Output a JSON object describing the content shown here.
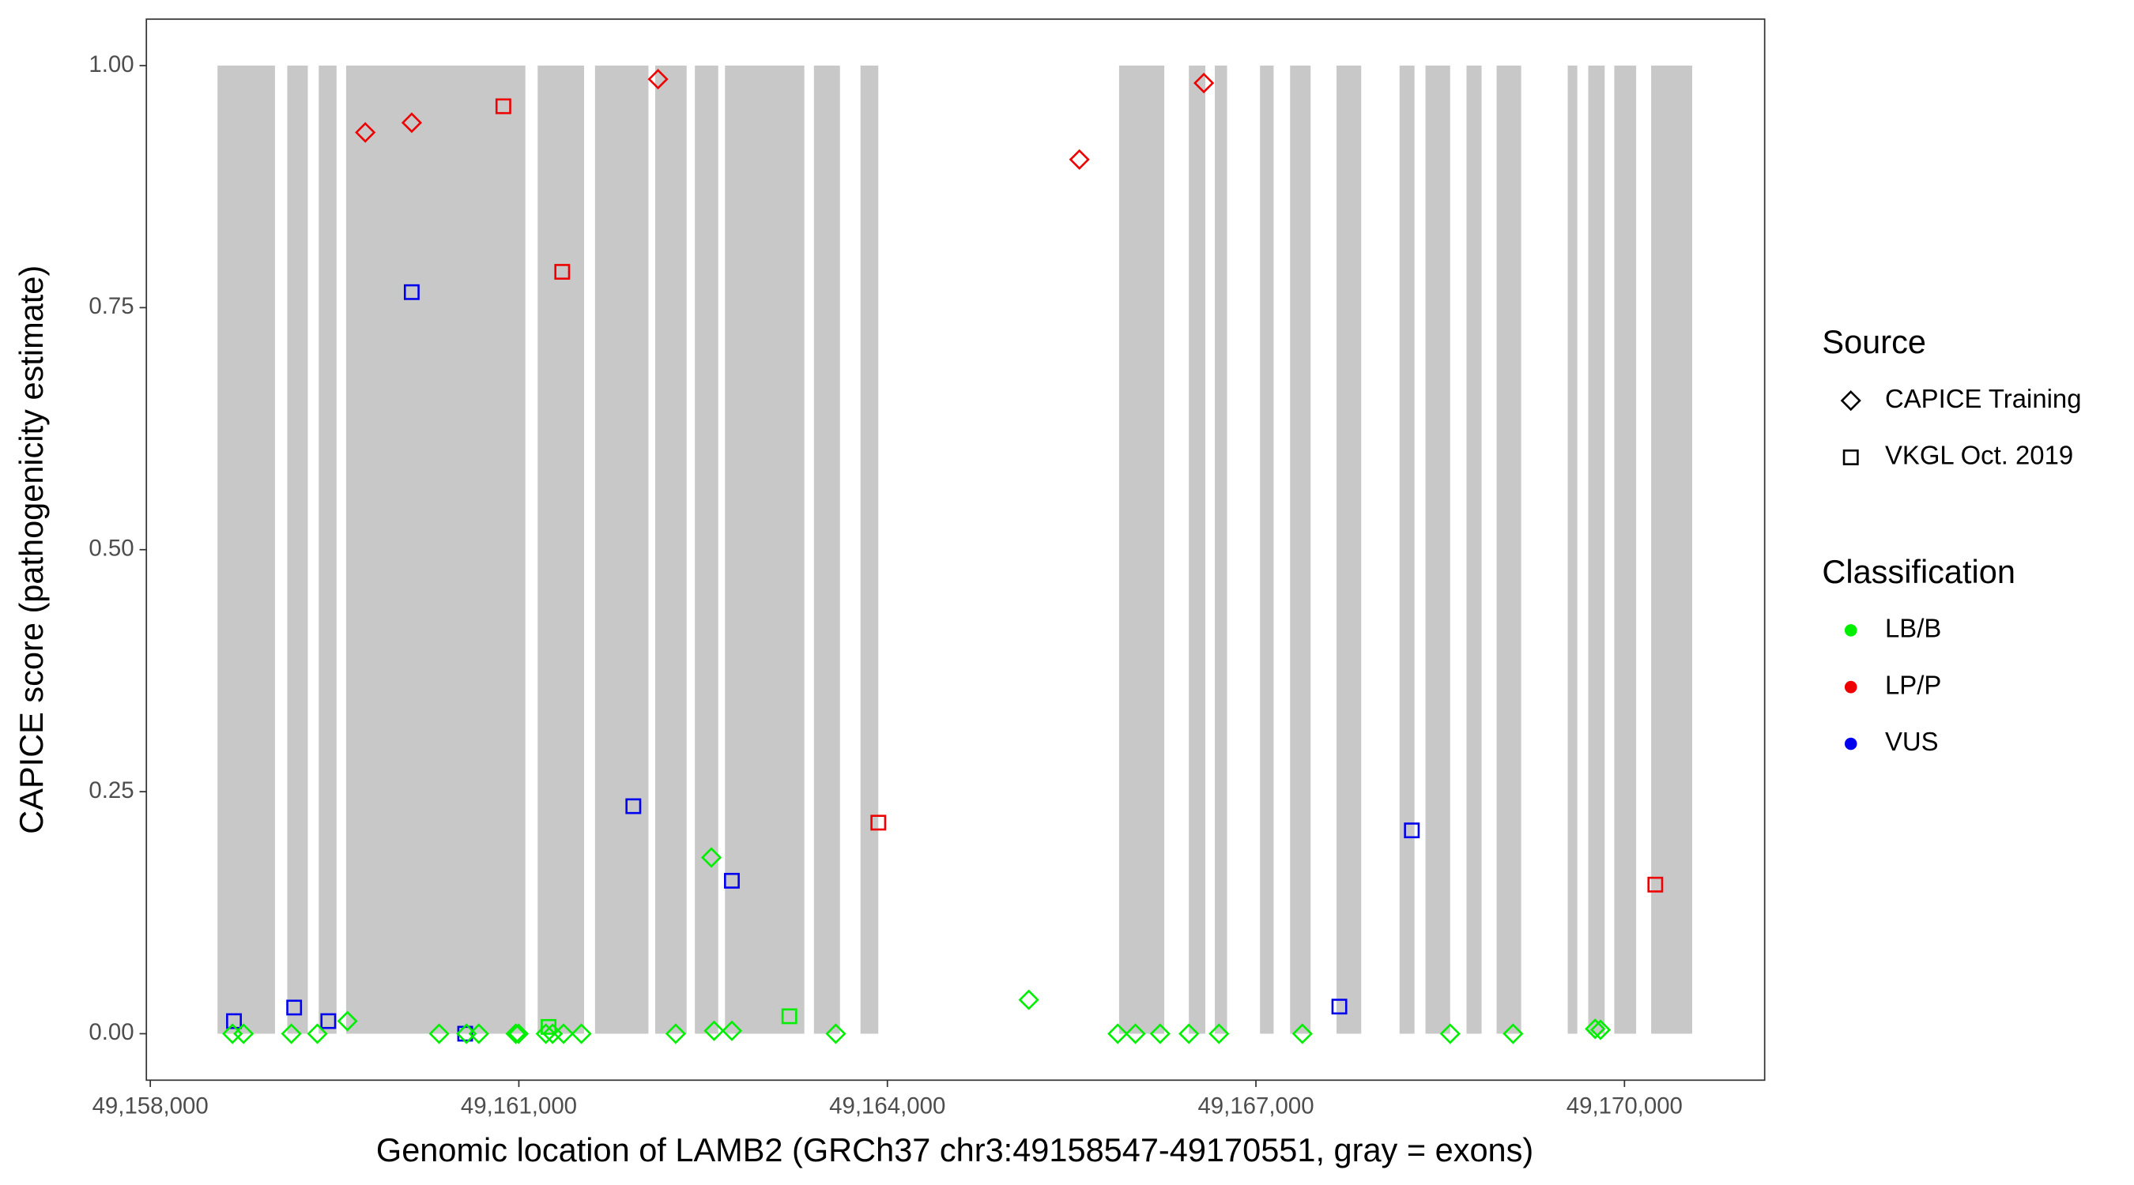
{
  "chart_data": {
    "type": "scatter",
    "x_label": "Genomic location of LAMB2 (GRCh37 chr3:49158547-49170551, gray = exons)",
    "y_label": "CAPICE score (pathogenicity estimate)",
    "xlim": [
      49157968,
      49171141
    ],
    "ylim": [
      -0.048,
      1.048
    ],
    "xticks": [
      {
        "value": 49158000,
        "label": "49,158,000"
      },
      {
        "value": 49161000,
        "label": "49,161,000"
      },
      {
        "value": 49164000,
        "label": "49,164,000"
      },
      {
        "value": 49167000,
        "label": "49,167,000"
      },
      {
        "value": 49170000,
        "label": "49,170,000"
      }
    ],
    "yticks": [
      {
        "value": 0,
        "label": "0.00"
      },
      {
        "value": 0.25,
        "label": "0.25"
      },
      {
        "value": 0.5,
        "label": "0.50"
      },
      {
        "value": 0.75,
        "label": "0.75"
      },
      {
        "value": 1,
        "label": "1.00"
      }
    ],
    "exons": {
      "color": "#c8c8c8",
      "ymin": 0,
      "ymax": 1,
      "start": [
        49158547,
        49159115,
        49159371,
        49159594,
        49161153,
        49161620,
        49162110,
        49162433,
        49162678,
        49163402,
        49163781,
        49165886,
        49166454,
        49166665,
        49167033,
        49167278,
        49167656,
        49168169,
        49168380,
        49168714,
        49168959,
        49169538,
        49169705,
        49169917,
        49170217
      ],
      "end": [
        49159015,
        49159282,
        49159516,
        49161053,
        49161531,
        49162055,
        49162366,
        49162623,
        49163324,
        49163614,
        49163926,
        49166254,
        49166588,
        49166765,
        49167144,
        49167445,
        49167857,
        49168291,
        49168581,
        49168837,
        49169159,
        49169616,
        49169839,
        49170095,
        49170551
      ]
    },
    "legends": [
      {
        "title": "Source",
        "entries": [
          {
            "label": "CAPICE Training",
            "shape": "diamond"
          },
          {
            "label": "VKGL Oct. 2019",
            "shape": "square"
          }
        ]
      },
      {
        "title": "Classification",
        "entries": [
          {
            "label": "LB/B",
            "color": "#00ee00"
          },
          {
            "label": "LP/P",
            "color": "#ee0000"
          },
          {
            "label": "VUS",
            "color": "#0000ee"
          }
        ]
      }
    ],
    "series": [
      {
        "shape": "diamond",
        "color": "#ee0000",
        "x": [
          49159750,
          49160128,
          49162133,
          49165563,
          49166576
        ],
        "values": [
          0.931,
          0.941,
          0.986,
          0.903,
          0.982
        ]
      },
      {
        "shape": "square",
        "color": "#ee0000",
        "x": [
          49160874,
          49161353,
          49163926,
          49170251
        ],
        "values": [
          0.958,
          0.787,
          0.218,
          0.154
        ]
      },
      {
        "shape": "square",
        "color": "#0000ee",
        "x": [
          49158681,
          49159171,
          49159449,
          49160128,
          49160563,
          49161932,
          49162734,
          49167679,
          49168269
        ],
        "values": [
          0.013,
          0.027,
          0.013,
          0.766,
          0.0,
          0.235,
          0.158,
          0.028,
          0.21
        ]
      },
      {
        "shape": "square",
        "color": "#00ee00",
        "x": [
          49161242,
          49163202
        ],
        "values": [
          0.007,
          0.018
        ]
      },
      {
        "shape": "diamond",
        "color": "#00ee00",
        "x": [
          49162567,
          49165151,
          49159605,
          49158669,
          49158759,
          49159148,
          49159360,
          49160351,
          49160574,
          49160674,
          49160975,
          49160997,
          49161220,
          49161275,
          49161364,
          49161509,
          49162277,
          49162589,
          49162734,
          49163580,
          49165875,
          49166019,
          49166220,
          49166454,
          49166699,
          49167378,
          49168581,
          49169093,
          49169761,
          49169805
        ],
        "values": [
          0.182,
          0.035,
          0.013,
          0.0,
          0.0,
          0.0,
          0.0,
          0.0,
          0.0,
          0.0,
          0.0,
          0.0,
          0.0,
          0.0,
          0.0,
          0.0,
          0.0,
          0.003,
          0.003,
          0.0,
          0.0,
          0.0,
          0.0,
          0.0,
          0.0,
          0.0,
          0.0,
          0.0,
          0.005,
          0.004
        ]
      }
    ]
  }
}
